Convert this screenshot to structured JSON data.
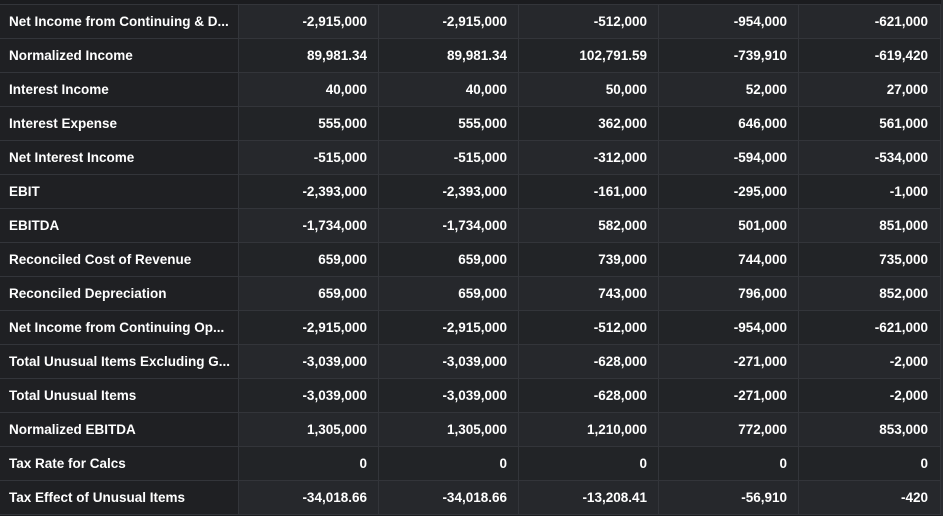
{
  "table": {
    "rows": [
      {
        "label": "Net Income from Continuing & D...",
        "values": [
          "-2,915,000",
          "-2,915,000",
          "-512,000",
          "-954,000",
          "-621,000"
        ]
      },
      {
        "label": "Normalized Income",
        "values": [
          "89,981.34",
          "89,981.34",
          "102,791.59",
          "-739,910",
          "-619,420"
        ]
      },
      {
        "label": "Interest Income",
        "values": [
          "40,000",
          "40,000",
          "50,000",
          "52,000",
          "27,000"
        ]
      },
      {
        "label": "Interest Expense",
        "values": [
          "555,000",
          "555,000",
          "362,000",
          "646,000",
          "561,000"
        ]
      },
      {
        "label": "Net Interest Income",
        "values": [
          "-515,000",
          "-515,000",
          "-312,000",
          "-594,000",
          "-534,000"
        ]
      },
      {
        "label": "EBIT",
        "values": [
          "-2,393,000",
          "-2,393,000",
          "-161,000",
          "-295,000",
          "-1,000"
        ]
      },
      {
        "label": "EBITDA",
        "values": [
          "-1,734,000",
          "-1,734,000",
          "582,000",
          "501,000",
          "851,000"
        ]
      },
      {
        "label": "Reconciled Cost of Revenue",
        "values": [
          "659,000",
          "659,000",
          "739,000",
          "744,000",
          "735,000"
        ]
      },
      {
        "label": "Reconciled Depreciation",
        "values": [
          "659,000",
          "659,000",
          "743,000",
          "796,000",
          "852,000"
        ]
      },
      {
        "label": "Net Income from Continuing Op...",
        "values": [
          "-2,915,000",
          "-2,915,000",
          "-512,000",
          "-954,000",
          "-621,000"
        ]
      },
      {
        "label": "Total Unusual Items Excluding G...",
        "values": [
          "-3,039,000",
          "-3,039,000",
          "-628,000",
          "-271,000",
          "-2,000"
        ]
      },
      {
        "label": "Total Unusual Items",
        "values": [
          "-3,039,000",
          "-3,039,000",
          "-628,000",
          "-271,000",
          "-2,000"
        ]
      },
      {
        "label": "Normalized EBITDA",
        "values": [
          "1,305,000",
          "1,305,000",
          "1,210,000",
          "772,000",
          "853,000"
        ]
      },
      {
        "label": "Tax Rate for Calcs",
        "values": [
          "0",
          "0",
          "0",
          "0",
          "0"
        ]
      },
      {
        "label": "Tax Effect of Unusual Items",
        "values": [
          "-34,018.66",
          "-34,018.66",
          "-13,208.41",
          "-56,910",
          "-420"
        ]
      }
    ]
  },
  "colors": {
    "background": "#1b1c1f",
    "label_cell": "#1f2023",
    "value_cell": "#26282c",
    "grid_line": "#33353a",
    "text": "#ffffff"
  }
}
